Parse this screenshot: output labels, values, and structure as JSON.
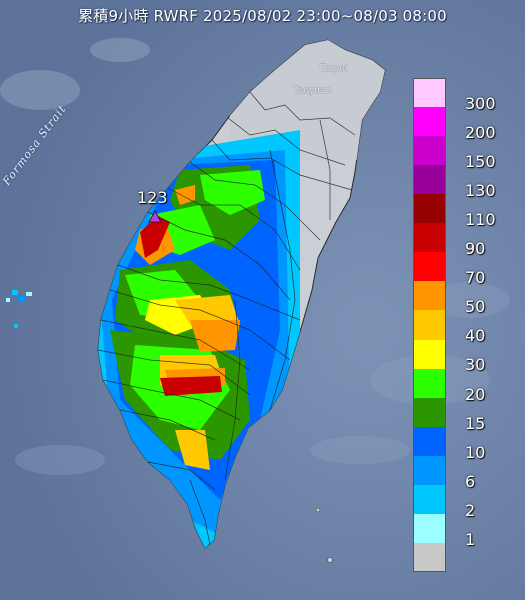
{
  "title": "累積9小時 RWRF 2025/08/02 23:00~08/03 08:00",
  "map_labels": {
    "strait": "Formosa Strait",
    "taipei": "Taipei",
    "taoyuan": "Taoyuan"
  },
  "max_marker": {
    "value": "123",
    "icon": "triangle-marker-icon",
    "color": "#b040e0"
  },
  "legend": {
    "items": [
      {
        "label": "300",
        "color": "#ffc8ff"
      },
      {
        "label": "200",
        "color": "#ff00ff"
      },
      {
        "label": "150",
        "color": "#cc00cc"
      },
      {
        "label": "130",
        "color": "#990099"
      },
      {
        "label": "110",
        "color": "#960000"
      },
      {
        "label": "90",
        "color": "#c80000"
      },
      {
        "label": "70",
        "color": "#ff0000"
      },
      {
        "label": "50",
        "color": "#ff9600"
      },
      {
        "label": "40",
        "color": "#ffc800"
      },
      {
        "label": "30",
        "color": "#ffff00"
      },
      {
        "label": "20",
        "color": "#2cff00"
      },
      {
        "label": "15",
        "color": "#2c9600"
      },
      {
        "label": "10",
        "color": "#0064ff"
      },
      {
        "label": "6",
        "color": "#0096ff"
      },
      {
        "label": "2",
        "color": "#00c8ff"
      },
      {
        "label": "1",
        "color": "#9bffff"
      },
      {
        "label": "",
        "color": "#c8c8c8"
      }
    ]
  }
}
